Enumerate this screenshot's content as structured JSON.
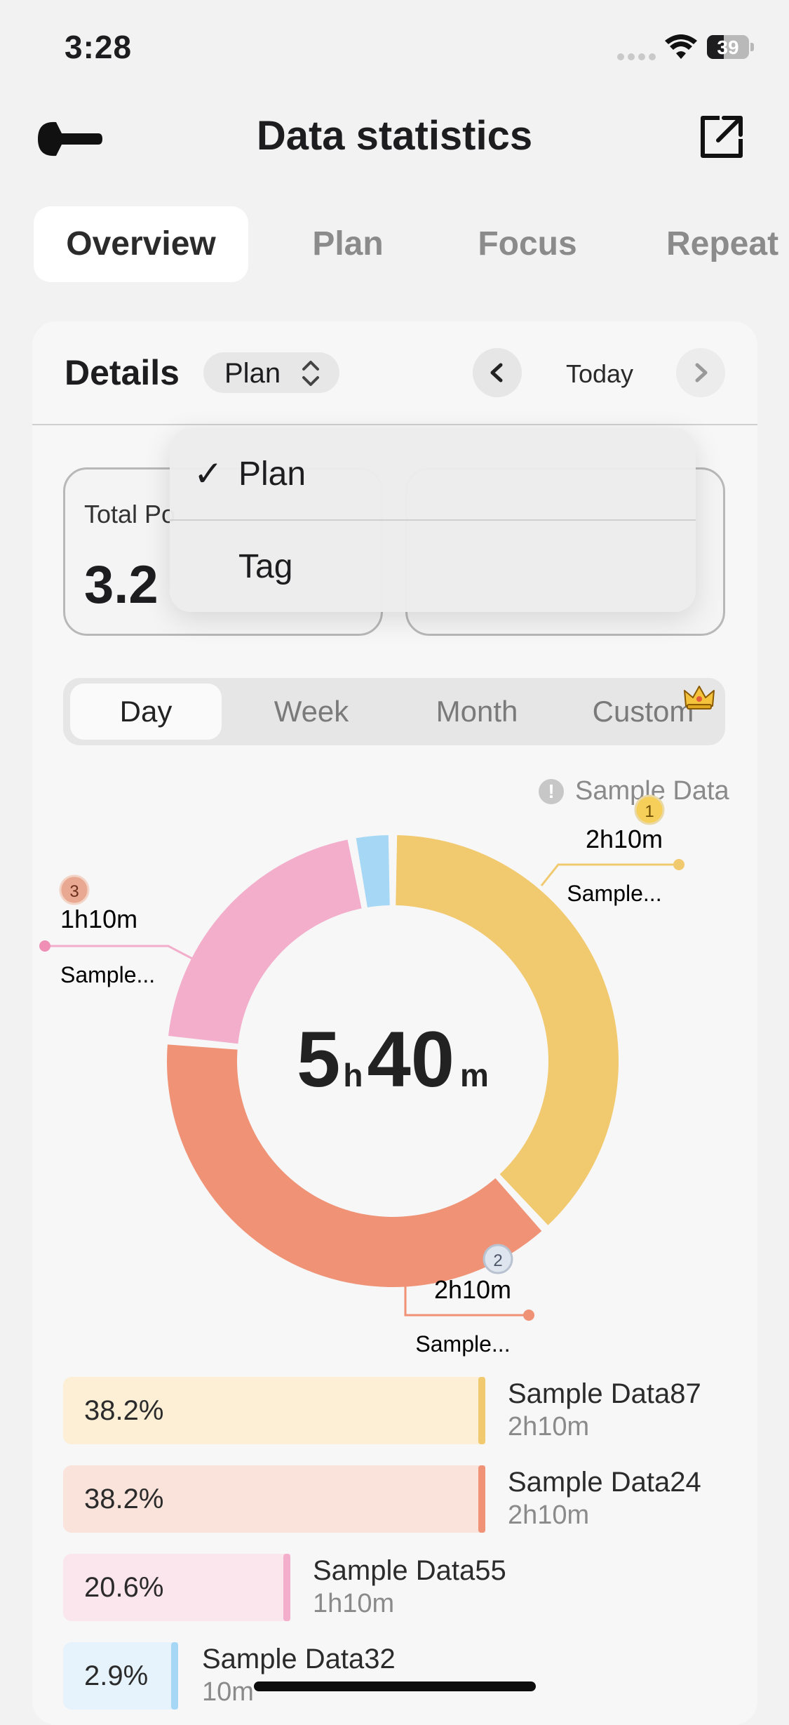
{
  "status": {
    "time": "3:28",
    "battery": "39"
  },
  "nav": {
    "title": "Data statistics"
  },
  "tabs": [
    {
      "label": "Overview",
      "active": true
    },
    {
      "label": "Plan",
      "active": false
    },
    {
      "label": "Focus",
      "active": false
    },
    {
      "label": "Repeat",
      "active": false
    }
  ],
  "details": {
    "title": "Details",
    "selector_value": "Plan",
    "date_label": "Today",
    "stat_label": "Total Po",
    "stat_value": "3.2"
  },
  "dropdown": {
    "options": [
      {
        "label": "Plan",
        "checked": true,
        "check": "✓"
      },
      {
        "label": "Tag",
        "checked": false,
        "check": ""
      }
    ]
  },
  "periods": [
    {
      "label": "Day",
      "active": true
    },
    {
      "label": "Week",
      "active": false
    },
    {
      "label": "Month",
      "active": false
    },
    {
      "label": "Custom",
      "active": false
    }
  ],
  "info": {
    "icon": "!",
    "text": "Sample Data"
  },
  "chart_data": {
    "type": "pie",
    "center_value": {
      "hours": "5",
      "h_unit": "h",
      "minutes": "40",
      "m_unit": "m"
    },
    "slices": [
      {
        "name": "Sample Data87",
        "percent": 38.2,
        "percent_label": "38.2%",
        "time": "2h10m",
        "rank": "1",
        "callout": "Sample...",
        "color": "#f1c96f"
      },
      {
        "name": "Sample Data24",
        "percent": 38.2,
        "percent_label": "38.2%",
        "time": "2h10m",
        "rank": "2",
        "callout": "Sample...",
        "color": "#ef9276"
      },
      {
        "name": "Sample Data55",
        "percent": 20.6,
        "percent_label": "20.6%",
        "time": "1h10m",
        "rank": "3",
        "callout": "Sample...",
        "color": "#f2aecb"
      },
      {
        "name": "Sample Data32",
        "percent": 2.9,
        "percent_label": "2.9%",
        "time": "10m",
        "rank": "",
        "callout": "",
        "color": "#a6d8f6"
      }
    ]
  },
  "legend_colors": {
    "bg": [
      "#fcefd6",
      "#f9e3da",
      "#fce6ee",
      "#e6f3fc"
    ]
  }
}
